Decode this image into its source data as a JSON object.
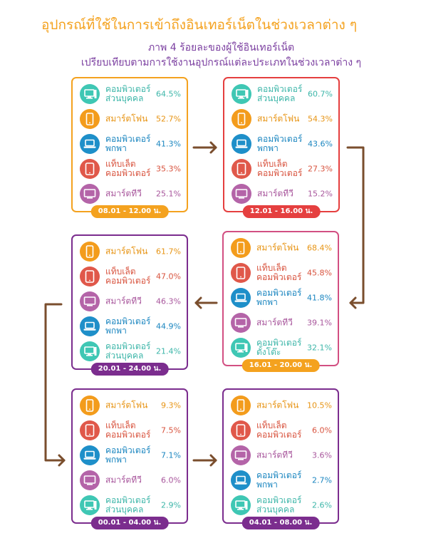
{
  "title": "อุปกรณ์ที่ใช้ในการเข้าถึงอินเทอร์เน็ตในช่วงเวลาต่าง ๆ",
  "subtitle_line1": "ภาพ 4 ร้อยละของผู้ใช้อินเทอร์เน็ต",
  "subtitle_line2": "เปรียบเทียบตามการใช้งานอุปกรณ์แต่ละประเภทในช่วงเวลาต่าง ๆ",
  "colors": {
    "orange": "#f4a21f",
    "red": "#e53f3f",
    "purple": "#7b2d8e",
    "pink": "#d24f82",
    "arrow": "#7a4e2d",
    "teal_icon": "#3fc7b4",
    "blue_icon": "#1e8fc9",
    "red_icon": "#e0584a",
    "purple_icon": "#b464a8",
    "orange_icon": "#f39c1c"
  },
  "chart_data": [
    {
      "type": "table",
      "time": "08.01 - 12.00 น.",
      "items": [
        {
          "label": "คอมพิวเตอร์ส่วนบุคคล",
          "value": 64.5,
          "display": "64.5%",
          "icon": "desktop-icon"
        },
        {
          "label": "สมาร์ตโฟน",
          "value": 52.7,
          "display": "52.7%",
          "icon": "smartphone-icon"
        },
        {
          "label": "คอมพิวเตอร์พกพา",
          "value": 41.3,
          "display": "41.3%",
          "icon": "laptop-icon"
        },
        {
          "label": "แท็บเล็ตคอมพิวเตอร์",
          "value": 35.3,
          "display": "35.3%",
          "icon": "tablet-icon"
        },
        {
          "label": "สมาร์ตทีวี",
          "value": 25.1,
          "display": "25.1%",
          "icon": "tv-icon"
        }
      ]
    },
    {
      "type": "table",
      "time": "12.01 - 16.00 น.",
      "items": [
        {
          "label": "คอมพิวเตอร์ส่วนบุคคล",
          "value": 60.7,
          "display": "60.7%",
          "icon": "desktop-icon"
        },
        {
          "label": "สมาร์ตโฟน",
          "value": 54.3,
          "display": "54.3%",
          "icon": "smartphone-icon"
        },
        {
          "label": "คอมพิวเตอร์พกพา",
          "value": 43.6,
          "display": "43.6%",
          "icon": "laptop-icon"
        },
        {
          "label": "แท็บเล็ตคอมพิวเตอร์",
          "value": 27.3,
          "display": "27.3%",
          "icon": "tablet-icon"
        },
        {
          "label": "สมาร์ตทีวี",
          "value": 15.2,
          "display": "15.2%",
          "icon": "tv-icon"
        }
      ]
    },
    {
      "type": "table",
      "time": "16.01 - 20.00 น.",
      "items": [
        {
          "label": "สมาร์ตโฟน",
          "value": 68.4,
          "display": "68.4%",
          "icon": "smartphone-icon"
        },
        {
          "label": "แท็บเล็ตคอมพิวเตอร์",
          "value": 45.8,
          "display": "45.8%",
          "icon": "tablet-icon"
        },
        {
          "label": "คอมพิวเตอร์พกพา",
          "value": 41.8,
          "display": "41.8%",
          "icon": "laptop-icon"
        },
        {
          "label": "สมาร์ตทีวี",
          "value": 39.1,
          "display": "39.1%",
          "icon": "tv-icon"
        },
        {
          "label": "คอมพิวเตอร์ตั้งโต๊ะ",
          "value": 32.1,
          "display": "32.1%",
          "icon": "desktop-icon"
        }
      ]
    },
    {
      "type": "table",
      "time": "20.01 - 24.00 น.",
      "items": [
        {
          "label": "สมาร์ตโฟน",
          "value": 61.7,
          "display": "61.7%",
          "icon": "smartphone-icon"
        },
        {
          "label": "แท็บเล็ตคอมพิวเตอร์",
          "value": 47.0,
          "display": "47.0%",
          "icon": "tablet-icon"
        },
        {
          "label": "สมาร์ตทีวี",
          "value": 46.3,
          "display": "46.3%",
          "icon": "tv-icon"
        },
        {
          "label": "คอมพิวเตอร์พกพา",
          "value": 44.9,
          "display": "44.9%",
          "icon": "laptop-icon"
        },
        {
          "label": "คอมพิวเตอร์ส่วนบุคคล",
          "value": 21.4,
          "display": "21.4%",
          "icon": "desktop-icon"
        }
      ]
    },
    {
      "type": "table",
      "time": "00.01 - 04.00 น.",
      "items": [
        {
          "label": "สมาร์ตโฟน",
          "value": 9.3,
          "display": "9.3%",
          "icon": "smartphone-icon"
        },
        {
          "label": "แท็บเล็ตคอมพิวเตอร์",
          "value": 7.5,
          "display": "7.5%",
          "icon": "tablet-icon"
        },
        {
          "label": "คอมพิวเตอร์พกพา",
          "value": 7.1,
          "display": "7.1%",
          "icon": "laptop-icon"
        },
        {
          "label": "สมาร์ตทีวี",
          "value": 6.0,
          "display": "6.0%",
          "icon": "tv-icon"
        },
        {
          "label": "คอมพิวเตอร์ส่วนบุคคล",
          "value": 2.9,
          "display": "2.9%",
          "icon": "desktop-icon"
        }
      ]
    },
    {
      "type": "table",
      "time": "04.01 - 08.00 น.",
      "items": [
        {
          "label": "สมาร์ตโฟน",
          "value": 10.5,
          "display": "10.5%",
          "icon": "smartphone-icon"
        },
        {
          "label": "แท็บเล็ตคอมพิวเตอร์",
          "value": 6.0,
          "display": "6.0%",
          "icon": "tablet-icon"
        },
        {
          "label": "สมาร์ตทีวี",
          "value": 3.6,
          "display": "3.6%",
          "icon": "tv-icon"
        },
        {
          "label": "คอมพิวเตอร์พกพา",
          "value": 2.7,
          "display": "2.7%",
          "icon": "laptop-icon"
        },
        {
          "label": "คอมพิวเตอร์ส่วนบุคคล",
          "value": 2.6,
          "display": "2.6%",
          "icon": "desktop-icon"
        }
      ]
    }
  ]
}
